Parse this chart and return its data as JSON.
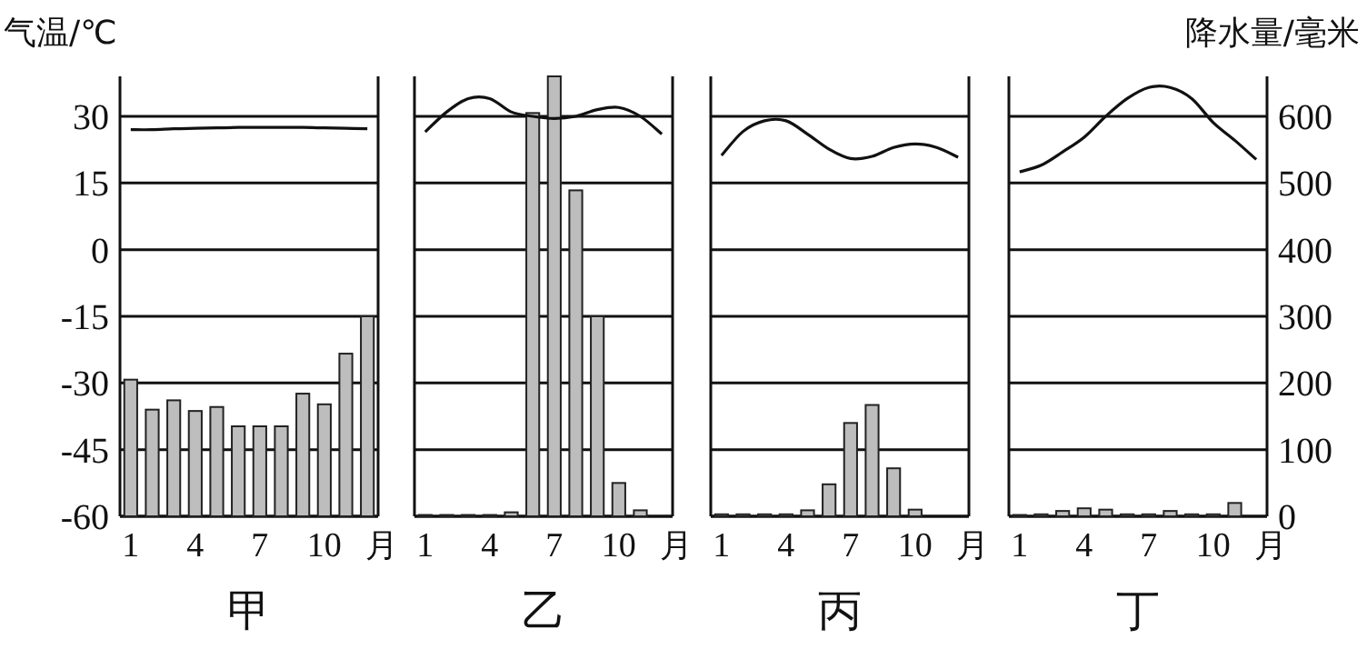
{
  "chart_data": [
    {
      "type": "bar",
      "title": "甲",
      "ylabel": "气温/℃",
      "xlabel": "月",
      "categories": [
        "1",
        null,
        null,
        "4",
        null,
        null,
        "7",
        null,
        null,
        "10",
        null,
        null
      ],
      "series": [
        {
          "axis": "y2",
          "color": "#bdbdbd",
          "values": [
            205,
            160,
            174,
            158,
            164,
            135,
            135,
            135,
            184,
            168,
            244,
            300
          ]
        },
        {
          "type": "line",
          "axis": "y",
          "color": "#111111",
          "values": [
            27,
            27,
            27.2,
            27.3,
            27.4,
            27.5,
            27.5,
            27.5,
            27.5,
            27.4,
            27.3,
            27.2
          ]
        }
      ],
      "ylim": [
        -60,
        39
      ],
      "yticks": [
        -60,
        -45,
        -30,
        -15,
        0,
        15,
        30
      ],
      "y2lim": [
        0,
        660
      ],
      "grid": "y"
    },
    {
      "type": "bar",
      "title": "乙",
      "xlabel": "月",
      "categories": [
        "1",
        null,
        null,
        "4",
        null,
        null,
        "7",
        null,
        null,
        "10",
        null,
        null
      ],
      "series": [
        {
          "axis": "y2",
          "color": "#bdbdbd",
          "values": [
            2,
            2,
            2,
            2,
            6,
            605,
            660,
            489,
            300,
            50,
            9,
            0
          ]
        },
        {
          "type": "line",
          "axis": "y",
          "color": "#111111",
          "values": [
            26.5,
            31,
            34,
            34,
            31,
            30,
            29.5,
            30,
            31.5,
            32,
            30,
            26
          ]
        }
      ],
      "ylim": [
        -60,
        39
      ],
      "yticks": [
        -60,
        -45,
        -30,
        -15,
        0,
        15,
        30
      ],
      "y2lim": [
        0,
        660
      ],
      "grid": "y",
      "tick_labels": "x"
    },
    {
      "type": "bar",
      "title": "丙",
      "xlabel": "月",
      "categories": [
        "1",
        null,
        null,
        "4",
        null,
        null,
        "7",
        null,
        null,
        "10",
        null,
        null
      ],
      "series": [
        {
          "axis": "y2",
          "color": "#bdbdbd",
          "values": [
            3,
            3,
            3,
            3,
            9,
            48,
            140,
            167,
            72,
            10,
            0,
            0
          ]
        },
        {
          "type": "line",
          "axis": "y",
          "color": "#111111",
          "values": [
            21.2,
            26.6,
            29,
            29,
            26,
            22.6,
            20.5,
            21,
            23,
            23.8,
            23,
            20.8
          ]
        }
      ],
      "ylim": [
        -60,
        39
      ],
      "yticks": [
        -60,
        -45,
        -30,
        -15,
        0,
        15,
        30
      ],
      "y2lim": [
        0,
        660
      ],
      "grid": "y",
      "tick_labels": "x"
    },
    {
      "type": "bar",
      "title": "丁",
      "xlabel": "月",
      "y2label": "降水量/毫米",
      "categories": [
        "1",
        null,
        null,
        "4",
        null,
        null,
        "7",
        null,
        null,
        "10",
        null,
        null
      ],
      "series": [
        {
          "axis": "y2",
          "color": "#bdbdbd",
          "values": [
            2,
            3,
            8,
            12,
            10,
            3,
            3,
            8,
            3,
            3,
            20,
            0
          ]
        },
        {
          "type": "line",
          "axis": "y",
          "color": "#111111",
          "values": [
            17.5,
            19,
            22,
            25.3,
            30,
            34,
            36.5,
            36.5,
            34,
            28.6,
            24.6,
            20.3
          ]
        }
      ],
      "ylim": [
        -60,
        39
      ],
      "y2lim": [
        0,
        660
      ],
      "y2ticks": [
        0,
        100,
        200,
        300,
        400,
        500,
        600
      ],
      "grid": "y"
    }
  ]
}
